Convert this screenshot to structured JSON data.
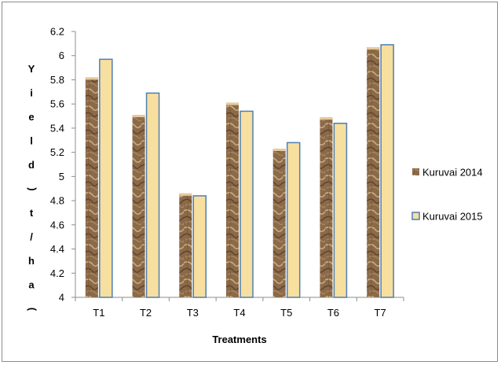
{
  "chart_data": {
    "type": "bar",
    "categories": [
      "T1",
      "T2",
      "T3",
      "T4",
      "T5",
      "T6",
      "T7"
    ],
    "series": [
      {
        "name": "Kuruvai 2014",
        "values": [
          5.82,
          5.51,
          4.86,
          5.61,
          5.23,
          5.49,
          6.07
        ],
        "color": "#8b6a4a"
      },
      {
        "name": "Kuruvai 2015",
        "values": [
          5.97,
          5.69,
          4.84,
          5.54,
          5.28,
          5.44,
          6.09
        ],
        "color": "#f7dfa0"
      }
    ],
    "xlabel": "Treatments",
    "ylabel": "Yield (t/ha)",
    "ylim": [
      4,
      6.2
    ],
    "yticks": [
      "4",
      "4.2",
      "4.4",
      "4.6",
      "4.8",
      "5",
      "5.2",
      "5.4",
      "5.6",
      "5.8",
      "6",
      "6.2"
    ],
    "grid": false,
    "legend_position": "right"
  }
}
